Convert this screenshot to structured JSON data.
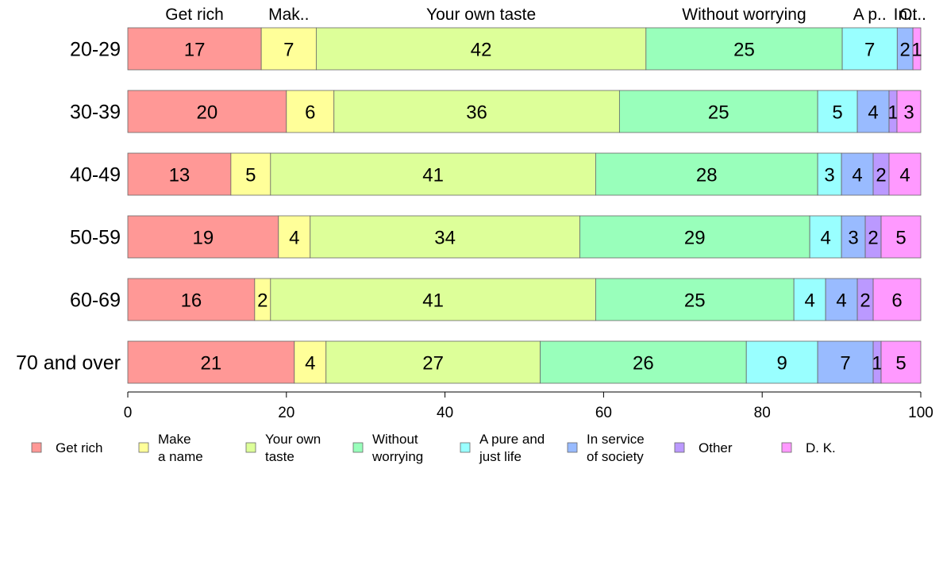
{
  "chart_data": {
    "type": "bar",
    "orientation": "horizontal",
    "stacked": true,
    "categories": [
      "20-29",
      "30-39",
      "40-49",
      "50-59",
      "60-69",
      "70 and over"
    ],
    "series": [
      {
        "name": "Get rich",
        "color": "#ff9896",
        "values": [
          17,
          20,
          13,
          19,
          16,
          21
        ]
      },
      {
        "name": "Make a name",
        "color": "#ffff99",
        "values": [
          7,
          6,
          5,
          4,
          2,
          4
        ]
      },
      {
        "name": "Your own taste",
        "color": "#ddff99",
        "values": [
          42,
          36,
          41,
          34,
          41,
          27
        ]
      },
      {
        "name": "Without worrying",
        "color": "#99ffbb",
        "values": [
          25,
          25,
          28,
          29,
          25,
          26
        ]
      },
      {
        "name": "A pure and just life",
        "color": "#99ffff",
        "values": [
          7,
          5,
          3,
          4,
          4,
          9
        ]
      },
      {
        "name": "In service of society",
        "color": "#99bbff",
        "values": [
          2,
          4,
          4,
          3,
          4,
          7
        ]
      },
      {
        "name": "Other",
        "color": "#bb99ff",
        "values": [
          0,
          1,
          2,
          2,
          2,
          1
        ]
      },
      {
        "name": "D. K.",
        "color": "#ff99ff",
        "values": [
          1,
          3,
          4,
          5,
          6,
          5
        ]
      }
    ],
    "top_labels": [
      "Get rich",
      "Mak..",
      "Your own taste",
      "Without worrying",
      "A p..",
      "In..",
      "Ot..",
      ""
    ],
    "legend": [
      {
        "line1": "Get rich",
        "line2": ""
      },
      {
        "line1": "Make",
        "line2": "a name"
      },
      {
        "line1": "Your own",
        "line2": "taste"
      },
      {
        "line1": "Without",
        "line2": "worrying"
      },
      {
        "line1": "A pure and",
        "line2": "just life"
      },
      {
        "line1": "In service",
        "line2": "of society"
      },
      {
        "line1": "Other",
        "line2": ""
      },
      {
        "line1": "D. K.",
        "line2": ""
      }
    ],
    "xticks": [
      0,
      20,
      40,
      60,
      80,
      100
    ],
    "xlim": [
      0,
      100
    ],
    "grid": false,
    "legend_position": "bottom"
  }
}
